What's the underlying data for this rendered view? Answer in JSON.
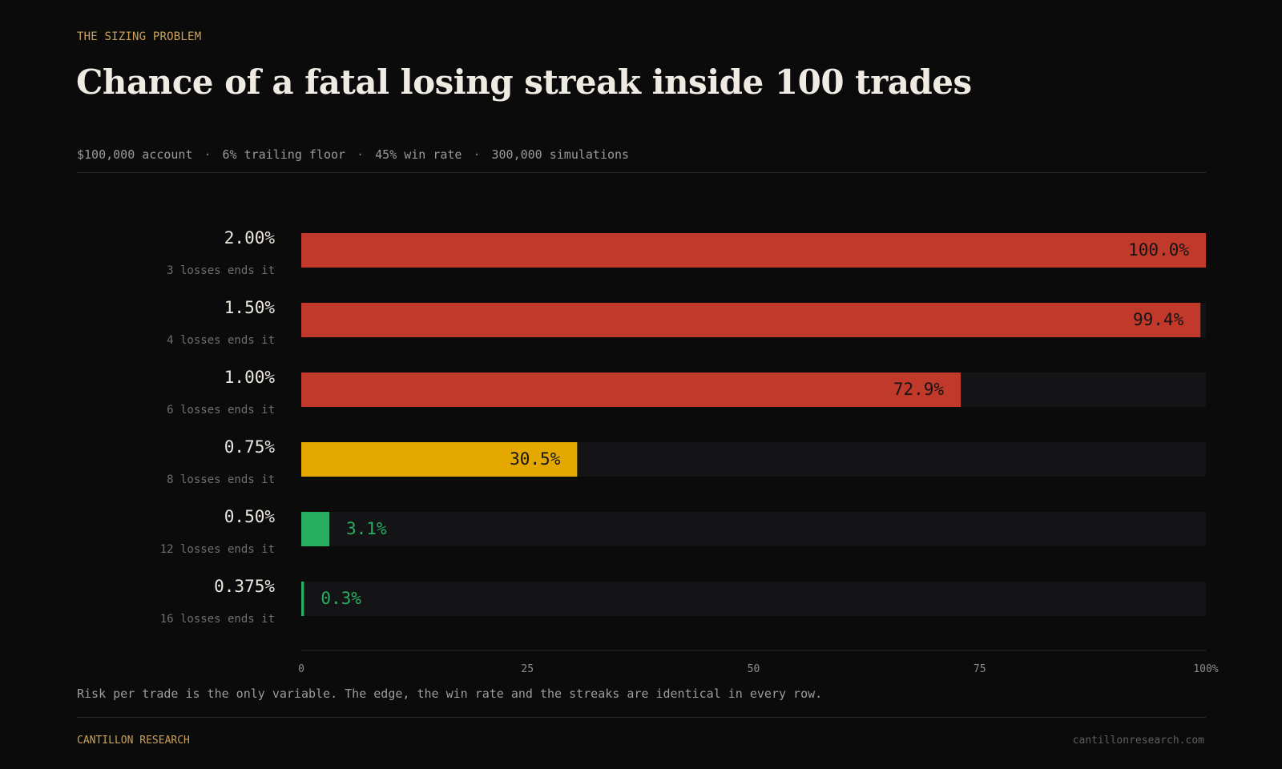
{
  "header": {
    "kicker": "THE SIZING PROBLEM",
    "title": "Chance of a fatal losing streak inside 100 trades",
    "meta": [
      "$100,000 account",
      "6% trailing floor",
      "45% win rate",
      "300,000 simulations"
    ],
    "meta_separator": "·"
  },
  "colors": {
    "high": "#c0392b",
    "mid": "#e5a800",
    "low": "#27ae60",
    "track": "#141416"
  },
  "chart_data": {
    "type": "bar",
    "orientation": "horizontal",
    "title": "Chance of a fatal losing streak inside 100 trades",
    "categories": [
      "2.00%",
      "1.50%",
      "1.00%",
      "0.75%",
      "0.50%",
      "0.375%"
    ],
    "sublabels": [
      "3 losses ends it",
      "4 losses ends it",
      "6 losses ends it",
      "8 losses ends it",
      "12 losses ends it",
      "16 losses ends it"
    ],
    "values": [
      100.0,
      99.4,
      72.9,
      30.5,
      3.1,
      0.3
    ],
    "value_labels": [
      "100.0%",
      "99.4%",
      "72.9%",
      "30.5%",
      "3.1%",
      "0.3%"
    ],
    "bar_colors": [
      "#c0392b",
      "#c0392b",
      "#c0392b",
      "#e5a800",
      "#27ae60",
      "#27ae60"
    ],
    "xlim": [
      0,
      100
    ],
    "xticks": [
      0,
      25,
      50,
      75,
      100
    ],
    "xtick_labels": [
      "0",
      "25",
      "50",
      "75",
      "100%"
    ],
    "grid": false,
    "legend": "none"
  },
  "footer": {
    "note": "Risk per trade is the only variable. The edge, the win rate and the streaks are identical in every row.",
    "brand": "CANTILLON RESEARCH",
    "site": "cantillonresearch.com"
  }
}
